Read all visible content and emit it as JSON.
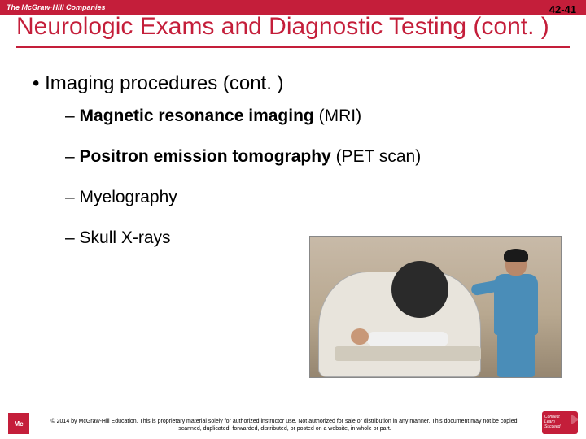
{
  "header": {
    "brand": "The McGraw·Hill Companies",
    "page_number": "42-41"
  },
  "title": "Neurologic Exams and Diagnostic Testing (cont. )",
  "main_bullet": "Imaging procedures (cont. )",
  "sub_items": [
    {
      "bold": "Magnetic resonance imaging",
      "rest": " (MRI)"
    },
    {
      "bold": "Positron  emission tomography",
      "rest": " (PET scan)"
    },
    {
      "bold": "",
      "rest": "Myelography"
    },
    {
      "bold": "",
      "rest": "Skull X-rays"
    }
  ],
  "footer": {
    "logo_left": "Mc",
    "logo_right_l1": "Connect",
    "logo_right_l2": "Learn",
    "logo_right_l3": "Succeed",
    "copyright": "© 2014 by McGraw-Hill Education. This is proprietary material solely for authorized instructor use. Not authorized for sale or distribution in any manner. This document may not be copied, scanned, duplicated, forwarded, distributed, or posted on a website, in whole or part."
  },
  "colors": {
    "brand_red": "#c41e3a",
    "tech_scrub": "#4a8db8"
  }
}
